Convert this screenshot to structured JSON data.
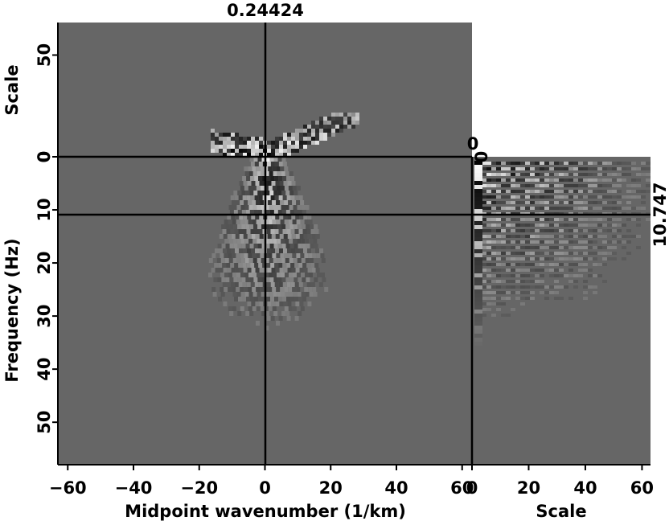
{
  "chart_data": {
    "type": "heatmap",
    "description_panels": [
      "main",
      "top",
      "side"
    ],
    "main": {
      "xlabel": "Midpoint wavenumber (1/km)",
      "ylabel": "Frequency (Hz)",
      "xlim": [
        -63,
        63
      ],
      "ylim": [
        0,
        58
      ],
      "x_ticks": [
        -60,
        -40,
        -20,
        0,
        20,
        40,
        60
      ],
      "x_tick_labels": [
        "−60",
        "−40",
        "−20",
        "0",
        "20",
        "40",
        "60"
      ],
      "y_ticks": [
        0,
        10,
        20,
        30,
        40,
        50
      ],
      "y_tick_labels": [
        "0",
        "10",
        "20",
        "30",
        "40",
        "50"
      ],
      "cursor_x": 0.24424,
      "cursor_y": 10.747
    },
    "top": {
      "ylabel": "Scale",
      "ylim": [
        0,
        66
      ],
      "y_ticks": [
        0,
        50
      ],
      "y_tick_labels": [
        "0",
        "50"
      ]
    },
    "side": {
      "xlabel": "Scale",
      "xlim": [
        0,
        63
      ],
      "x_ticks": [
        0,
        20,
        40,
        60
      ],
      "x_tick_labels": [
        "0",
        "20",
        "40",
        "60"
      ]
    },
    "cursor_labels": {
      "x_value": "0.24424",
      "y_value": "10.747",
      "top_corner": "0",
      "side_corner": "0"
    },
    "colors": {
      "background": "#666666",
      "line": "#000000",
      "bright": "#ffffff"
    }
  }
}
